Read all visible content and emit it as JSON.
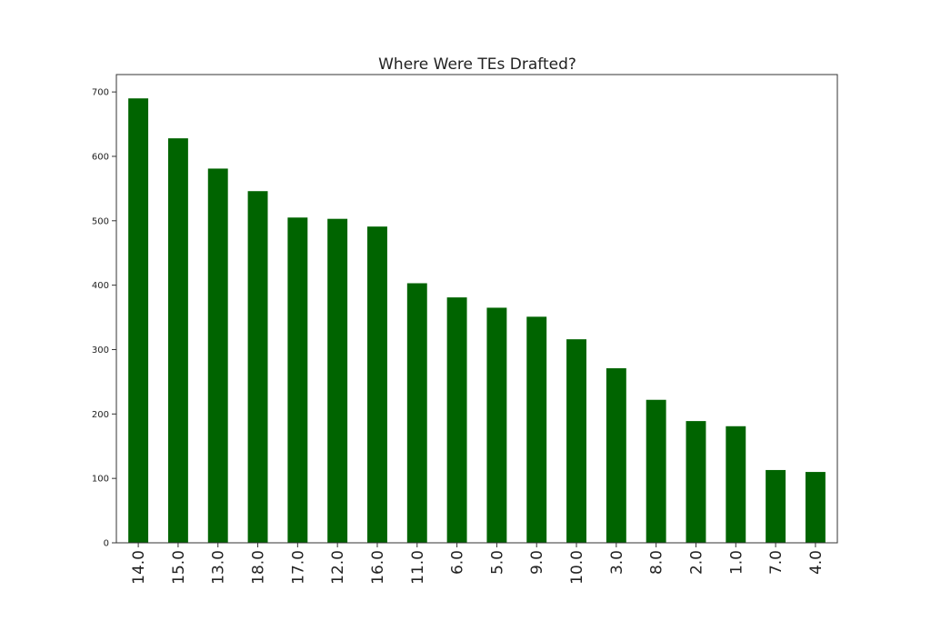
{
  "chart_data": {
    "type": "bar",
    "title": "Where Were TEs Drafted?",
    "xlabel": "",
    "ylabel": "",
    "categories": [
      "14.0",
      "15.0",
      "13.0",
      "18.0",
      "17.0",
      "12.0",
      "16.0",
      "11.0",
      "6.0",
      "5.0",
      "9.0",
      "10.0",
      "3.0",
      "8.0",
      "2.0",
      "1.0",
      "7.0",
      "4.0"
    ],
    "values": [
      690,
      628,
      581,
      546,
      505,
      503,
      491,
      403,
      381,
      365,
      351,
      316,
      271,
      222,
      189,
      181,
      113,
      110
    ],
    "ylim": [
      0,
      727
    ],
    "yticks": [
      0,
      100,
      200,
      300,
      400,
      500,
      600,
      700
    ],
    "grid": false,
    "legend": "none",
    "bar_color": "#006400"
  }
}
